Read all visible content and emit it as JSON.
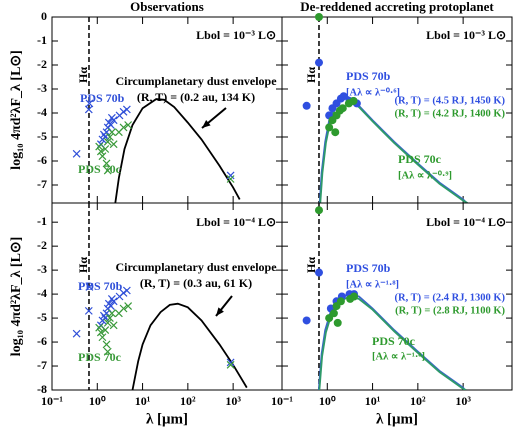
{
  "chart_data": [
    {
      "type": "scatter",
      "title": "Observations",
      "ylabel": "log₁₀ 4πd²λF_λ [L⊙]",
      "xlog": true,
      "xlim": [
        0.1,
        12000
      ],
      "ylim": [
        -7.75,
        0
      ],
      "yticks": [
        0,
        -1,
        -2,
        -3,
        -4,
        -5,
        -6,
        -7
      ],
      "vline": 0.656,
      "annotations": [
        "Lbol = 10⁻³ L⊙",
        "Circumplanetary dust envelope",
        "(R, T) = (0.2 au, 134 K)",
        "Hα"
      ],
      "series": [
        {
          "name": "PDS 70b",
          "color": "#3050d8",
          "marker": "x",
          "x": [
            0.35,
            0.65,
            0.67,
            1.2,
            1.3,
            1.4,
            1.5,
            1.6,
            1.7,
            1.8,
            2.0,
            2.1,
            2.3,
            3.1,
            3.8,
            4.5,
            880
          ],
          "values": [
            -5.7,
            -3.85,
            -3.6,
            -5.3,
            -5.1,
            -4.9,
            -5.0,
            -4.8,
            -4.6,
            -4.4,
            -4.5,
            -4.2,
            -4.3,
            -4.1,
            -3.95,
            -3.85,
            -6.6
          ]
        },
        {
          "name": "PDS 70c",
          "color": "#3a9a3a",
          "marker": "x",
          "x": [
            1.1,
            1.2,
            1.3,
            1.5,
            1.7,
            1.9,
            2.1,
            2.3,
            1.6,
            1.7,
            3.0,
            3.8,
            4.8,
            880
          ],
          "values": [
            -5.4,
            -5.6,
            -5.8,
            -5.5,
            -5.2,
            -5.0,
            -4.8,
            -5.3,
            -6.1,
            -6.4,
            -4.8,
            -4.6,
            -4.5,
            -6.75
          ]
        }
      ],
      "curves": [
        {
          "color": "#000000",
          "x": [
            2.5,
            3,
            4,
            6,
            10,
            20,
            30,
            50,
            100,
            200,
            500,
            1000,
            1400
          ],
          "values": [
            -7.75,
            -6.7,
            -5.5,
            -4.5,
            -3.8,
            -3.42,
            -3.45,
            -3.75,
            -4.4,
            -5.1,
            -6.2,
            -7.1,
            -7.6
          ]
        }
      ]
    },
    {
      "type": "scatter",
      "title": "De-reddened accreting protoplanet",
      "xlog": true,
      "xlim": [
        0.1,
        12000
      ],
      "ylim": [
        -7.75,
        0
      ],
      "vline": 0.656,
      "annotations": [
        "Lbol = 10⁻³ L⊙",
        "Hα",
        "[Aλ ∝ λ⁻⁰·⁶]",
        "(R, T) = (4.5 RJ, 1450 K)",
        "(R, T) = (4.2 RJ, 1400 K)",
        "[Aλ ∝ λ⁻⁰·⁹]"
      ],
      "series": [
        {
          "name": "PDS 70b",
          "color": "#2f4fe0",
          "marker": "o",
          "x": [
            0.35,
            0.656,
            1.1,
            1.3,
            1.6,
            2.0,
            2.3,
            3.1,
            3.8,
            4.5
          ],
          "values": [
            -3.7,
            -1.9,
            -4.1,
            -3.8,
            -3.6,
            -3.4,
            -3.3,
            -3.5,
            -3.5,
            -3.6
          ]
        },
        {
          "name": "PDS 70c",
          "color": "#2e9a2e",
          "marker": "o",
          "x": [
            0.656,
            1.1,
            1.3,
            1.6,
            1.9,
            2.2,
            3.0,
            3.8,
            1.5
          ],
          "values": [
            0.0,
            -4.6,
            -4.3,
            -4.1,
            -3.9,
            -3.8,
            -3.6,
            -3.5,
            -4.8
          ]
        }
      ],
      "curves": [
        {
          "color": "#3a66c8",
          "x": [
            0.68,
            0.75,
            0.9,
            1.1,
            1.5,
            2,
            3,
            5,
            10,
            30,
            100,
            300,
            1000,
            1200
          ],
          "values": [
            -7.75,
            -6.5,
            -5.2,
            -4.3,
            -3.6,
            -3.3,
            -3.35,
            -3.7,
            -4.3,
            -5.2,
            -6.1,
            -6.9,
            -7.6,
            -7.75
          ]
        },
        {
          "color": "#2e9a6a",
          "x": [
            0.7,
            0.78,
            0.93,
            1.15,
            1.55,
            2.1,
            3.1,
            5,
            10,
            30,
            100,
            300,
            1000,
            1250
          ],
          "values": [
            -7.75,
            -6.5,
            -5.25,
            -4.4,
            -3.7,
            -3.4,
            -3.42,
            -3.75,
            -4.35,
            -5.25,
            -6.15,
            -6.95,
            -7.65,
            -7.75
          ]
        }
      ]
    },
    {
      "type": "scatter",
      "ylabel": "log₁₀ 4πd²λF_λ [L⊙]",
      "xlabel": "λ [μm]",
      "xlog": true,
      "xlim": [
        0.1,
        12000
      ],
      "ylim": [
        -8,
        -0.2
      ],
      "yticks": [
        -1,
        -2,
        -3,
        -4,
        -5,
        -6,
        -7,
        -8
      ],
      "vline": 0.656,
      "xticks": [
        {
          "value": 0.1,
          "label": "10⁻¹"
        },
        {
          "value": 1,
          "label": "10⁰"
        },
        {
          "value": 10,
          "label": "10¹"
        },
        {
          "value": 100,
          "label": "10²"
        },
        {
          "value": 1000,
          "label": "10³"
        }
      ],
      "annotations": [
        "Lbol = 10⁻⁴ L⊙",
        "Circumplanetary dust envelope",
        "(R, T) = (0.3 au, 61 K)",
        "Hα"
      ],
      "series": [
        {
          "name": "PDS 70b",
          "color": "#3050d8",
          "marker": "x",
          "x": [
            0.35,
            0.65,
            0.67,
            1.2,
            1.3,
            1.4,
            1.5,
            1.6,
            1.7,
            1.8,
            2.0,
            2.1,
            2.3,
            3.1,
            3.8,
            4.5,
            880
          ],
          "values": [
            -5.65,
            -4.7,
            -3.7,
            -5.3,
            -5.1,
            -4.9,
            -5.0,
            -4.8,
            -4.6,
            -4.4,
            -4.5,
            -4.2,
            -4.3,
            -4.1,
            -3.95,
            -3.85,
            -6.85
          ]
        },
        {
          "name": "PDS 70c",
          "color": "#3a9a3a",
          "marker": "x",
          "x": [
            1.1,
            1.2,
            1.3,
            1.5,
            1.7,
            1.9,
            2.1,
            2.3,
            1.6,
            1.7,
            3.0,
            3.8,
            4.8,
            880
          ],
          "values": [
            -5.4,
            -5.6,
            -5.8,
            -5.5,
            -5.2,
            -5.0,
            -4.8,
            -5.3,
            -6.1,
            -6.4,
            -4.8,
            -4.6,
            -4.5,
            -6.95
          ]
        }
      ],
      "curves": [
        {
          "color": "#000000",
          "x": [
            6,
            8,
            10,
            15,
            25,
            40,
            60,
            100,
            200,
            500,
            1000,
            2000
          ],
          "values": [
            -8,
            -6.8,
            -6.1,
            -5.3,
            -4.75,
            -4.45,
            -4.4,
            -4.55,
            -5.1,
            -6.1,
            -6.95,
            -7.9
          ]
        }
      ]
    },
    {
      "type": "scatter",
      "xlabel": "λ [μm]",
      "xlog": true,
      "xlim": [
        0.1,
        12000
      ],
      "ylim": [
        -8,
        -0.2
      ],
      "vline": 0.656,
      "xticks": [
        {
          "value": 0.1,
          "label": "10⁻¹"
        },
        {
          "value": 1,
          "label": "10⁰"
        },
        {
          "value": 10,
          "label": "10¹"
        },
        {
          "value": 100,
          "label": "10²"
        },
        {
          "value": 1000,
          "label": "10³"
        }
      ],
      "annotations": [
        "Lbol = 10⁻⁴ L⊙",
        "Hα",
        "[Aλ ∝ λ⁻¹·⁸]",
        "(R, T) = (2.4 RJ, 1300 K)",
        "(R, T) = (2.8 RJ, 1100 K)",
        "[Aλ ∝ λ⁻¹·⁸]"
      ],
      "series": [
        {
          "name": "PDS 70b",
          "color": "#2f4fe0",
          "marker": "o",
          "x": [
            0.35,
            0.656,
            1.2,
            1.6,
            2.1,
            3.1,
            3.9
          ],
          "values": [
            -5.1,
            -3.1,
            -4.6,
            -4.3,
            -4.1,
            -4.0,
            -4.0
          ]
        },
        {
          "name": "PDS 70c",
          "color": "#2e9a2e",
          "marker": "o",
          "x": [
            0.656,
            1.1,
            1.4,
            1.6,
            2.0,
            3.2,
            3.9,
            1.7
          ],
          "values": [
            -0.5,
            -5.0,
            -4.8,
            -4.5,
            -4.3,
            -4.2,
            -4.1,
            -5.2
          ]
        }
      ],
      "curves": [
        {
          "color": "#3a66c8",
          "x": [
            0.65,
            0.75,
            0.9,
            1.2,
            1.8,
            3,
            5,
            10,
            30,
            100,
            300,
            1000,
            1100
          ],
          "values": [
            -8,
            -6.5,
            -5.5,
            -4.7,
            -4.2,
            -4.0,
            -4.1,
            -4.6,
            -5.5,
            -6.4,
            -7.2,
            -7.9,
            -8
          ]
        },
        {
          "color": "#2e9a6a",
          "x": [
            0.67,
            0.77,
            0.93,
            1.25,
            1.9,
            3.1,
            5,
            10,
            30,
            100,
            300,
            1000,
            1150
          ],
          "values": [
            -8,
            -6.6,
            -5.6,
            -4.8,
            -4.3,
            -4.1,
            -4.2,
            -4.65,
            -5.55,
            -6.45,
            -7.25,
            -7.95,
            -8
          ]
        }
      ]
    }
  ]
}
